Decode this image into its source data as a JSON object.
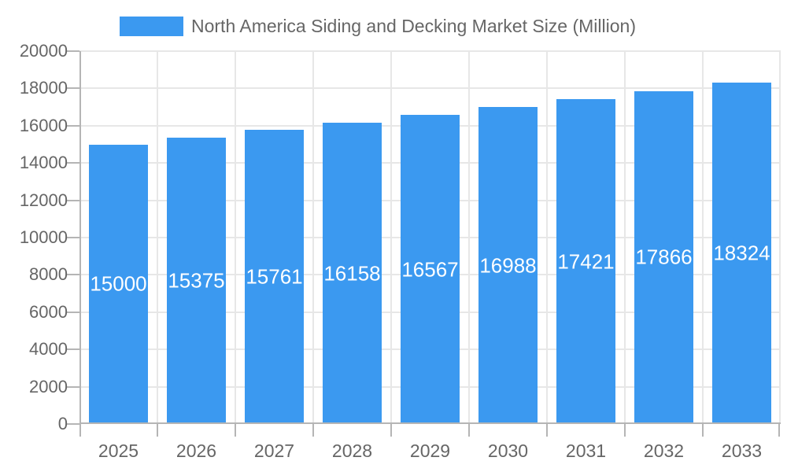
{
  "legend": {
    "label": "North America Siding and Decking Market Size (Million)"
  },
  "chart_data": {
    "type": "bar",
    "title": "North America Siding and Decking Market Size (Million)",
    "categories": [
      "2025",
      "2026",
      "2027",
      "2028",
      "2029",
      "2030",
      "2031",
      "2032",
      "2033"
    ],
    "values": [
      15000,
      15375,
      15761,
      16158,
      16567,
      16988,
      17421,
      17866,
      18324
    ],
    "value_labels": [
      "15000",
      "15375",
      "15761",
      "16158",
      "16567",
      "16988",
      "17421",
      "17866",
      "18324"
    ],
    "xlabel": "",
    "ylabel": "",
    "ylim": [
      0,
      20000
    ],
    "ytick_step": 2000,
    "ytick_labels": [
      "0",
      "2000",
      "4000",
      "6000",
      "8000",
      "10000",
      "12000",
      "14000",
      "16000",
      "18000",
      "20000"
    ],
    "grid": true,
    "legend_position": "top",
    "value_label_placement": "inside-center"
  },
  "colors": {
    "bar": "#3B99F0",
    "axis_text": "#666666",
    "grid_line": "#E7E7E7",
    "axis_line": "#B5B5B5",
    "value_label_text": "#FFFFFF",
    "background": "#FFFFFF"
  }
}
